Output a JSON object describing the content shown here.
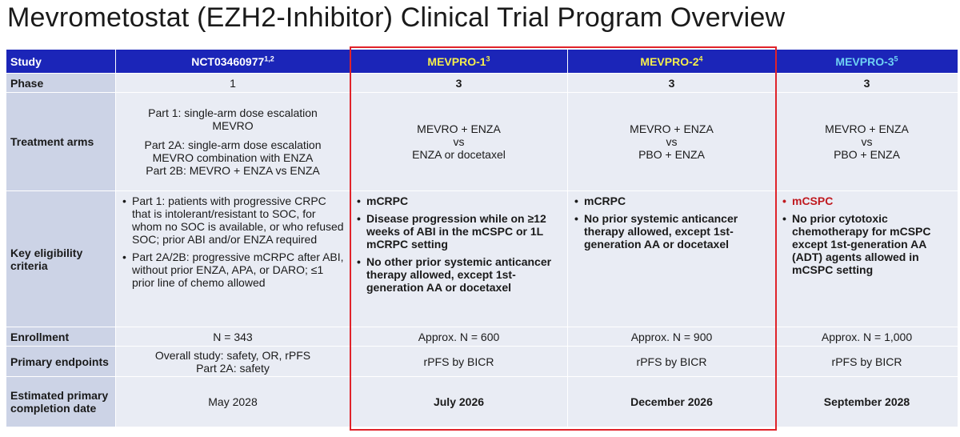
{
  "title": "Mevrometostat (EZH2-Inhibitor) Clinical Trial Program Overview",
  "header": {
    "label": "Study",
    "studies": [
      {
        "name": "NCT03460977",
        "sup": "1,2"
      },
      {
        "name": "MEVPRO-1",
        "sup": "3"
      },
      {
        "name": "MEVPRO-2",
        "sup": "4"
      },
      {
        "name": "MEVPRO-3",
        "sup": "5"
      }
    ]
  },
  "phase": {
    "label": "Phase",
    "values": [
      "1",
      "3",
      "3",
      "3"
    ]
  },
  "treatment": {
    "label": "Treatment arms",
    "nct": {
      "p1a": "Part 1: single-arm dose escalation",
      "p1b": "MEVRO",
      "p2a": "Part 2A: single-arm dose escalation",
      "p2b": "MEVRO combination with ENZA",
      "p2c": "Part 2B: MEVRO + ENZA vs ENZA"
    },
    "mevpro1": [
      "MEVRO + ENZA",
      "vs",
      "ENZA or docetaxel"
    ],
    "mevpro2": [
      "MEVRO + ENZA",
      "vs",
      "PBO + ENZA"
    ],
    "mevpro3": [
      "MEVRO + ENZA",
      "vs",
      "PBO + ENZA"
    ]
  },
  "eligibility": {
    "label": "Key eligibility criteria",
    "nct": [
      "Part 1: patients with progressive CRPC that is intolerant/resistant to SOC, for whom no SOC is available, or who refused SOC; prior ABI and/or ENZA required",
      "Part 2A/2B: progressive mCRPC after ABI, without prior ENZA, APA, or DARO; ≤1 prior line of chemo allowed"
    ],
    "mevpro1": [
      "mCRPC",
      "Disease progression while on ≥12 weeks of ABI in the mCSPC or 1L mCRPC setting",
      "No other prior systemic anticancer therapy allowed, except 1st-generation AA or docetaxel"
    ],
    "mevpro2": [
      "mCRPC",
      "No prior systemic anticancer therapy allowed, except 1st-generation AA or docetaxel"
    ],
    "mevpro3": [
      "mCSPC",
      "No prior cytotoxic chemotherapy for mCSPC except 1st-generation AA (ADT) agents allowed in mCSPC setting"
    ]
  },
  "enrollment": {
    "label": "Enrollment",
    "values": [
      "N = 343",
      "Approx. N = 600",
      "Approx. N = 900",
      "Approx. N = 1,000"
    ]
  },
  "endpoints": {
    "label": "Primary endpoints",
    "nct_line1": "Overall study: safety, OR, rPFS",
    "nct_line2": "Part 2A: safety",
    "values": [
      "rPFS by BICR",
      "rPFS by BICR",
      "rPFS by BICR"
    ]
  },
  "completion": {
    "label": "Estimated primary completion date",
    "values": [
      "May 2028",
      "July 2026",
      "December 2026",
      "September 2028"
    ]
  },
  "colors": {
    "header_bg": "#1b25b8",
    "label_bg": "#ccd3e6",
    "cell_bg": "#e9ecf4",
    "highlight_box": "#e0232a",
    "mevpro_header": "#f5ef4c",
    "mevpro3_header": "#6fd2f3",
    "mcspc": "#c0191f"
  }
}
